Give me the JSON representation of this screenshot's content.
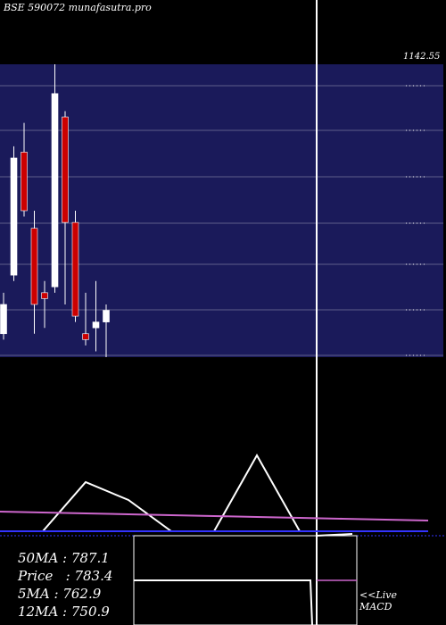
{
  "header": {
    "title": "BSE 590072  munafasutra.pro"
  },
  "price_panel": {
    "top_label": "1142.55",
    "bg_color": "#1a1a5a",
    "grid_color": "#ffffff",
    "bull_color": "#ffffff",
    "bear_color": "#cc0000"
  },
  "stats": {
    "ma50": "50MA : 787.1",
    "price": "Price   : 783.4",
    "ma5": "5MA : 762.9",
    "ma12": "12MA : 750.9"
  },
  "live": {
    "line1": "<<Live",
    "line2": "MACD"
  },
  "chart_data": {
    "type": "candlestick",
    "ylim": [
      650,
      1150
    ],
    "candles": [
      {
        "o": 690,
        "h": 760,
        "l": 680,
        "c": 740,
        "dir": "up"
      },
      {
        "o": 790,
        "h": 1010,
        "l": 780,
        "c": 990,
        "dir": "up"
      },
      {
        "o": 1000,
        "h": 1050,
        "l": 890,
        "c": 900,
        "dir": "down"
      },
      {
        "o": 870,
        "h": 900,
        "l": 690,
        "c": 740,
        "dir": "down"
      },
      {
        "o": 760,
        "h": 780,
        "l": 700,
        "c": 750,
        "dir": "down"
      },
      {
        "o": 770,
        "h": 1150,
        "l": 760,
        "c": 1100,
        "dir": "up"
      },
      {
        "o": 1060,
        "h": 1070,
        "l": 740,
        "c": 880,
        "dir": "down"
      },
      {
        "o": 880,
        "h": 900,
        "l": 710,
        "c": 720,
        "dir": "down"
      },
      {
        "o": 690,
        "h": 760,
        "l": 670,
        "c": 680,
        "dir": "down"
      },
      {
        "o": 700,
        "h": 780,
        "l": 660,
        "c": 710,
        "dir": "up"
      },
      {
        "o": 710,
        "h": 740,
        "l": 650,
        "c": 730,
        "dir": "up"
      }
    ],
    "indicator_lines": [
      {
        "name": "",
        "color": "#ffffff",
        "values": [
          0,
          0,
          55,
          35,
          0,
          0,
          85,
          0,
          0,
          0,
          0
        ]
      },
      {
        "name": "",
        "color": "#cc66cc",
        "values": [
          22,
          21,
          20,
          19,
          18,
          17,
          16,
          15,
          14,
          13,
          12
        ]
      },
      {
        "name": "",
        "color": "#3333ff",
        "values": [
          0,
          0,
          0,
          0,
          0,
          0,
          0,
          0,
          0,
          0,
          0
        ]
      }
    ]
  }
}
